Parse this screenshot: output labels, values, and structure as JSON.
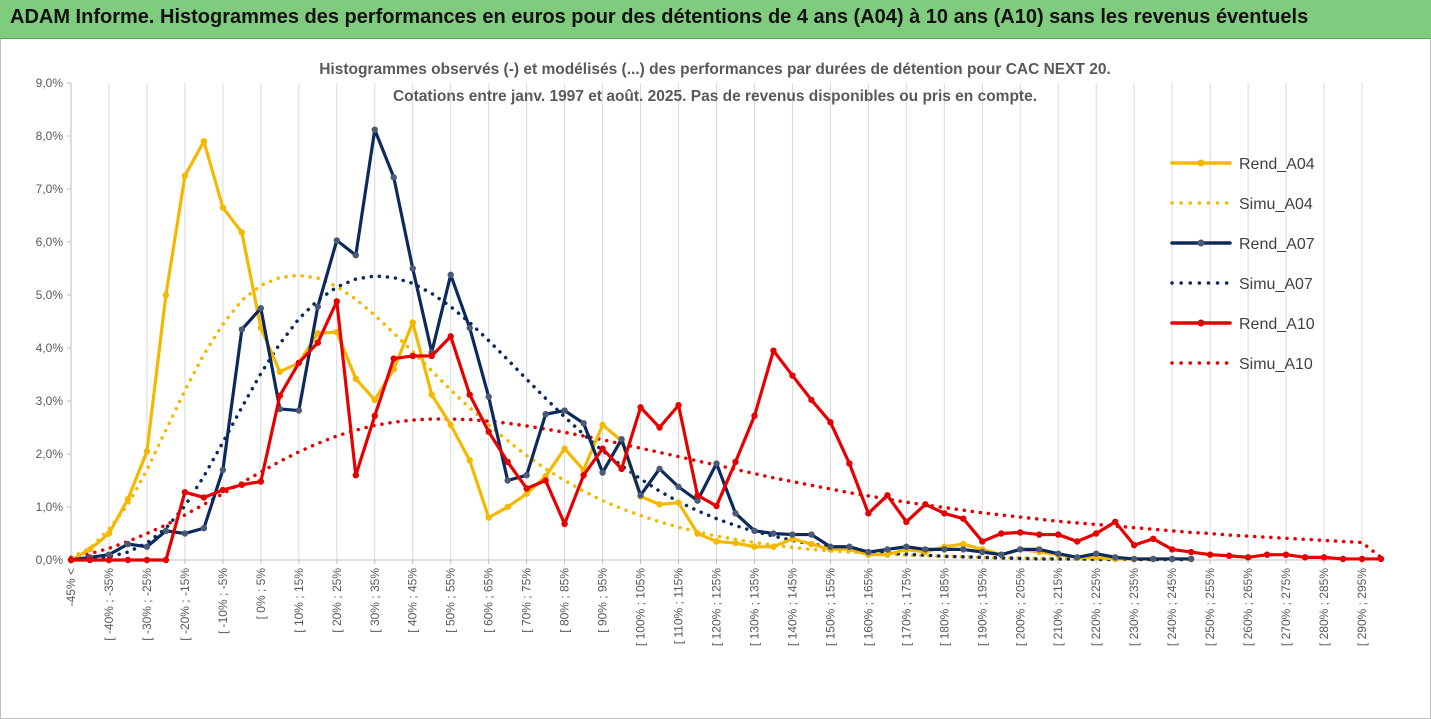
{
  "banner": {
    "title": "ADAM Informe. Histogrammes des performances en euros pour des détentions de 4 ans (A04) à 10 ans (A10) sans les revenus éventuels"
  },
  "chart_data": {
    "type": "line",
    "title": "Histogrammes observés (-) et modélisés (...) des performances par durées de détention pour CAC NEXT 20.",
    "subtitle": "Cotations entre janv. 1997 et août. 2025. Pas de revenus disponibles ou pris en compte.",
    "xlabel": "",
    "ylabel": "",
    "ylim": [
      0,
      9
    ],
    "yticks": [
      "0,0%",
      "1,0%",
      "2,0%",
      "3,0%",
      "4,0%",
      "5,0%",
      "6,0%",
      "7,0%",
      "8,0%",
      "9,0%"
    ],
    "grid": "vertical",
    "legend_position": "right",
    "x_tick_labels": [
      "-45% <",
      "[ -40% ; -35%",
      "[ -30% ; -25%",
      "[ -20% ; -15%",
      "[ -10% ; -5%",
      "[ 0% ; 5%",
      "[ 10% ; 15%",
      "[ 20% ; 25%",
      "[ 30% ; 35%",
      "[ 40% ; 45%",
      "[ 50% ; 55%",
      "[ 60% ; 65%",
      "[ 70% ; 75%",
      "[ 80% ; 85%",
      "[ 90% ; 95%",
      "[ 100% ; 105%",
      "[ 110% ; 115%",
      "[ 120% ; 125%",
      "[ 130% ; 135%",
      "[ 140% ; 145%",
      "[ 150% ; 155%",
      "[ 160% ; 165%",
      "[ 170% ; 175%",
      "[ 180% ; 185%",
      "[ 190% ; 195%",
      "[ 200% ; 205%",
      "[ 210% ; 215%",
      "[ 220% ; 225%",
      "[ 230% ; 235%",
      "[ 240% ; 245%",
      "[ 250% ; 255%",
      "[ 260% ; 265%",
      "[ 270% ; 275%",
      "[ 280% ; 285%",
      "[ 290% ; 295%"
    ],
    "series": [
      {
        "name": "Rend_A04",
        "style": "solid",
        "color": "#f5b800",
        "values": [
          0.0,
          0.2,
          0.5,
          1.15,
          2.05,
          5.0,
          7.25,
          7.9,
          6.65,
          6.18,
          4.38,
          3.55,
          3.72,
          4.28,
          4.3,
          3.42,
          3.02,
          3.6,
          4.48,
          3.12,
          2.55,
          1.88,
          0.8,
          1.0,
          1.25,
          1.58,
          2.1,
          1.7,
          2.55,
          2.25,
          1.2,
          1.05,
          1.08,
          0.5,
          0.35,
          0.32,
          0.25,
          0.25,
          0.4,
          0.3,
          0.2,
          0.2,
          0.1,
          0.1,
          0.2,
          0.15,
          0.25,
          0.3,
          0.2,
          0.1,
          0.2,
          0.15,
          0.1,
          0.05,
          0.05,
          0.02,
          0.02,
          0.02,
          0.02,
          0.02
        ]
      },
      {
        "name": "Simu_A04",
        "style": "dotted",
        "color": "#f5b800",
        "values": [
          0.05,
          0.22,
          0.58,
          1.05,
          1.7,
          2.45,
          3.2,
          3.88,
          4.45,
          4.9,
          5.18,
          5.33,
          5.37,
          5.32,
          5.16,
          4.92,
          4.62,
          4.28,
          3.93,
          3.57,
          3.21,
          2.87,
          2.55,
          2.25,
          1.97,
          1.72,
          1.5,
          1.3,
          1.12,
          0.97,
          0.84,
          0.72,
          0.62,
          0.53,
          0.45,
          0.39,
          0.33,
          0.28,
          0.24,
          0.2,
          0.17,
          0.15,
          0.13,
          0.11,
          0.09,
          0.08,
          0.07,
          0.06,
          0.05,
          0.04,
          0.04,
          0.03,
          0.03,
          0.02,
          0.02,
          0.02,
          0.01,
          0.01,
          0.01,
          0.01
        ]
      },
      {
        "name": "Rend_A07",
        "style": "solid",
        "color": "#0d2a5c",
        "values": [
          0.0,
          0.05,
          0.1,
          0.3,
          0.25,
          0.55,
          0.5,
          0.6,
          1.7,
          4.35,
          4.75,
          2.85,
          2.82,
          4.78,
          6.03,
          5.75,
          8.12,
          7.22,
          5.5,
          3.92,
          5.38,
          4.38,
          3.08,
          1.5,
          1.6,
          2.75,
          2.82,
          2.58,
          1.65,
          2.28,
          1.22,
          1.72,
          1.38,
          1.12,
          1.82,
          0.88,
          0.55,
          0.5,
          0.48,
          0.48,
          0.25,
          0.25,
          0.15,
          0.2,
          0.25,
          0.2,
          0.2,
          0.2,
          0.15,
          0.1,
          0.2,
          0.2,
          0.12,
          0.05,
          0.12,
          0.05,
          0.02,
          0.02,
          0.02,
          0.02
        ]
      },
      {
        "name": "Simu_A07",
        "style": "dotted",
        "color": "#0d2a5c",
        "values": [
          0.0,
          0.02,
          0.06,
          0.15,
          0.32,
          0.6,
          1.02,
          1.58,
          2.22,
          2.88,
          3.52,
          4.08,
          4.55,
          4.9,
          5.15,
          5.3,
          5.36,
          5.33,
          5.22,
          5.03,
          4.78,
          4.48,
          4.14,
          3.78,
          3.41,
          3.05,
          2.7,
          2.37,
          2.06,
          1.78,
          1.53,
          1.3,
          1.1,
          0.93,
          0.78,
          0.65,
          0.54,
          0.45,
          0.37,
          0.3,
          0.25,
          0.2,
          0.16,
          0.13,
          0.11,
          0.09,
          0.07,
          0.06,
          0.05,
          0.04,
          0.03,
          0.02,
          0.02,
          0.02,
          0.01,
          0.01,
          0.01,
          0.01,
          0.01,
          0.01
        ]
      },
      {
        "name": "Rend_A10",
        "style": "solid",
        "color": "#e60000",
        "values": [
          0.0,
          0.0,
          0.0,
          0.0,
          0.0,
          0.0,
          1.28,
          1.18,
          1.32,
          1.42,
          1.48,
          3.1,
          3.72,
          4.1,
          4.88,
          1.6,
          2.72,
          3.8,
          3.85,
          3.85,
          4.22,
          3.12,
          2.42,
          1.85,
          1.35,
          1.5,
          0.68,
          1.6,
          2.1,
          1.72,
          2.88,
          2.5,
          2.92,
          1.22,
          1.02,
          1.85,
          2.72,
          3.95,
          3.48,
          3.02,
          2.6,
          1.82,
          0.88,
          1.22,
          0.72,
          1.05,
          0.88,
          0.78,
          0.35,
          0.5,
          0.52,
          0.48,
          0.48,
          0.35,
          0.5,
          0.72,
          0.28,
          0.4,
          0.2,
          0.15,
          0.1,
          0.08,
          0.05,
          0.1,
          0.1,
          0.05,
          0.05,
          0.02,
          0.02,
          0.02
        ]
      },
      {
        "name": "Simu_A10",
        "style": "dotted",
        "color": "#e60000",
        "values": [
          0.05,
          0.12,
          0.22,
          0.35,
          0.5,
          0.66,
          0.85,
          1.05,
          1.25,
          1.46,
          1.66,
          1.86,
          2.04,
          2.2,
          2.34,
          2.45,
          2.54,
          2.6,
          2.64,
          2.66,
          2.66,
          2.65,
          2.62,
          2.58,
          2.53,
          2.47,
          2.41,
          2.34,
          2.27,
          2.19,
          2.11,
          2.03,
          1.95,
          1.87,
          1.79,
          1.71,
          1.63,
          1.55,
          1.48,
          1.41,
          1.34,
          1.27,
          1.21,
          1.15,
          1.09,
          1.04,
          0.99,
          0.94,
          0.89,
          0.85,
          0.81,
          0.77,
          0.73,
          0.7,
          0.67,
          0.64,
          0.61,
          0.58,
          0.55,
          0.52,
          0.5,
          0.47,
          0.45,
          0.43,
          0.41,
          0.39,
          0.37,
          0.35,
          0.33,
          0.05
        ]
      }
    ]
  }
}
